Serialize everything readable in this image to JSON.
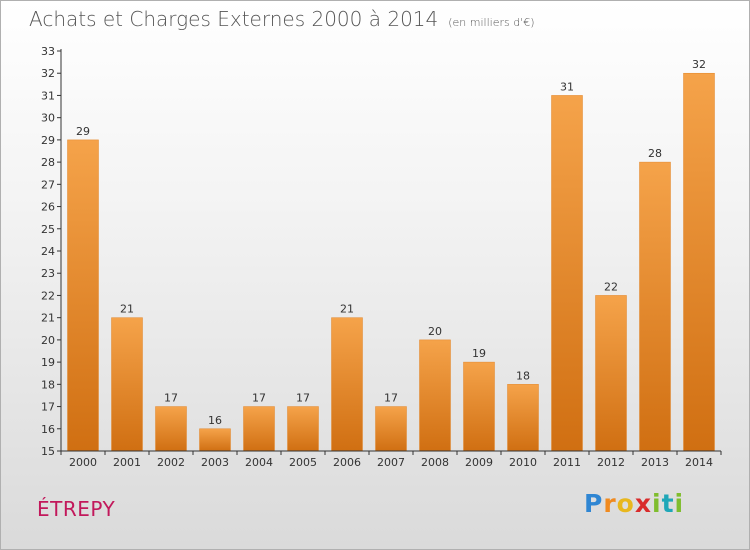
{
  "header": {
    "title": "Achats et Charges Externes 2000 à 2014",
    "unit": "(en milliers d'€)"
  },
  "footer": {
    "commune": "ÉTREPY",
    "brand": "Proxiti"
  },
  "colors": {
    "bar_light": "#f5a34a",
    "bar_dark": "#d06f12",
    "title": "#555555",
    "commune": "#c2185b"
  },
  "chart_data": {
    "type": "bar",
    "categories": [
      "2000",
      "2001",
      "2002",
      "2003",
      "2004",
      "2005",
      "2006",
      "2007",
      "2008",
      "2009",
      "2010",
      "2011",
      "2012",
      "2013",
      "2014"
    ],
    "values": [
      29,
      21,
      17,
      16,
      17,
      17,
      21,
      17,
      20,
      19,
      18,
      31,
      22,
      28,
      32
    ],
    "ylim": [
      15,
      33
    ],
    "yticks": [
      15,
      16,
      17,
      18,
      19,
      20,
      21,
      22,
      23,
      24,
      25,
      26,
      27,
      28,
      29,
      30,
      31,
      32,
      33
    ],
    "grid": false,
    "legend": "none"
  }
}
